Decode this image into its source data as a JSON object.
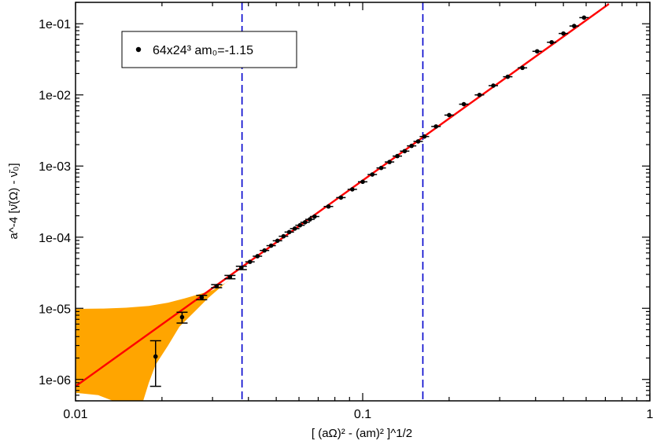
{
  "chart_data": {
    "type": "scatter",
    "xscale": "log",
    "yscale": "log",
    "xlim": [
      0.01,
      1
    ],
    "ylim": [
      5e-07,
      0.2
    ],
    "grid": false,
    "x_ticks": [
      {
        "value": 0.01,
        "label": "0.01"
      },
      {
        "value": 0.1,
        "label": "0.1"
      },
      {
        "value": 1,
        "label": "1"
      }
    ],
    "y_ticks": [
      {
        "value": 1e-06,
        "label": "1e-06"
      },
      {
        "value": 1e-05,
        "label": "1e-05"
      },
      {
        "value": 0.0001,
        "label": "1e-04"
      },
      {
        "value": 0.001,
        "label": "1e-03"
      },
      {
        "value": 0.01,
        "label": "1e-02"
      },
      {
        "value": 0.1,
        "label": "1e-01"
      }
    ],
    "xlabel": "[ (aΩ)² - (am)² ]^1/2",
    "ylabel": "a^-4 [ν̄(Ω) - ν̄₀]",
    "legend": {
      "position": "top-left",
      "entries": [
        "64x24³ am₀=-1.15"
      ]
    },
    "series": [
      {
        "name": "64x24³ am₀=-1.15",
        "marker": "circle",
        "color": "#000000",
        "points": [
          {
            "x": 0.019,
            "y": 2.1e-06,
            "ylo": 8e-07,
            "yhi": 3.5e-06
          },
          {
            "x": 0.0235,
            "y": 7.5e-06,
            "ylo": 6.2e-06,
            "yhi": 8.8e-06
          },
          {
            "x": 0.0275,
            "y": 1.42e-05,
            "ylo": 1.32e-05,
            "yhi": 1.52e-05
          },
          {
            "x": 0.031,
            "y": 2.05e-05,
            "ylo": 1.95e-05,
            "yhi": 2.15e-05
          },
          {
            "x": 0.0345,
            "y": 2.75e-05,
            "ylo": 2.6e-05,
            "yhi": 2.9e-05
          },
          {
            "x": 0.0378,
            "y": 3.7e-05,
            "ylo": 3.5e-05,
            "yhi": 3.9e-05
          },
          {
            "x": 0.0405,
            "y": 4.5e-05
          },
          {
            "x": 0.043,
            "y": 5.4e-05
          },
          {
            "x": 0.0455,
            "y": 6.5e-05
          },
          {
            "x": 0.048,
            "y": 7.6e-05
          },
          {
            "x": 0.0505,
            "y": 8.9e-05
          },
          {
            "x": 0.053,
            "y": 0.000103
          },
          {
            "x": 0.0555,
            "y": 0.000118
          },
          {
            "x": 0.058,
            "y": 0.000132
          },
          {
            "x": 0.0605,
            "y": 0.000147
          },
          {
            "x": 0.063,
            "y": 0.000162
          },
          {
            "x": 0.0655,
            "y": 0.000178
          },
          {
            "x": 0.068,
            "y": 0.000195
          },
          {
            "x": 0.076,
            "y": 0.00027
          },
          {
            "x": 0.084,
            "y": 0.00036
          },
          {
            "x": 0.092,
            "y": 0.00047
          },
          {
            "x": 0.1,
            "y": 0.0006
          },
          {
            "x": 0.108,
            "y": 0.00076
          },
          {
            "x": 0.116,
            "y": 0.00094
          },
          {
            "x": 0.124,
            "y": 0.00114
          },
          {
            "x": 0.132,
            "y": 0.00138
          },
          {
            "x": 0.14,
            "y": 0.00162
          },
          {
            "x": 0.148,
            "y": 0.00192
          },
          {
            "x": 0.156,
            "y": 0.00222
          },
          {
            "x": 0.164,
            "y": 0.0026
          },
          {
            "x": 0.18,
            "y": 0.0036
          },
          {
            "x": 0.2,
            "y": 0.0052
          },
          {
            "x": 0.225,
            "y": 0.0074
          },
          {
            "x": 0.255,
            "y": 0.01
          },
          {
            "x": 0.285,
            "y": 0.0135
          },
          {
            "x": 0.32,
            "y": 0.018
          },
          {
            "x": 0.36,
            "y": 0.024
          },
          {
            "x": 0.405,
            "y": 0.041
          },
          {
            "x": 0.455,
            "y": 0.055
          },
          {
            "x": 0.5,
            "y": 0.073
          },
          {
            "x": 0.545,
            "y": 0.093
          },
          {
            "x": 0.59,
            "y": 0.122
          }
        ]
      }
    ],
    "fit_line": {
      "color": "#ff0000",
      "points": [
        [
          0.01,
          8e-07
        ],
        [
          0.72,
          0.19
        ]
      ]
    },
    "error_band": {
      "color": "#ffa500",
      "upper": [
        [
          0.01,
          9.8e-06
        ],
        [
          0.0125,
          9.9e-06
        ],
        [
          0.015,
          1.02e-05
        ],
        [
          0.018,
          1.08e-05
        ],
        [
          0.021,
          1.2e-05
        ],
        [
          0.024,
          1.38e-05
        ],
        [
          0.027,
          1.58e-05
        ],
        [
          0.03,
          1.8e-05
        ],
        [
          0.0335,
          2.3e-05
        ],
        [
          0.0368,
          3.2e-05
        ]
      ],
      "lower": [
        [
          0.0368,
          3.2e-05
        ],
        [
          0.033,
          2.2e-05
        ],
        [
          0.029,
          1.4e-05
        ],
        [
          0.026,
          9e-06
        ],
        [
          0.023,
          5.5e-06
        ],
        [
          0.021,
          3e-06
        ],
        [
          0.019,
          1.6e-06
        ],
        [
          0.018,
          9e-07
        ],
        [
          0.0172,
          5e-07
        ],
        [
          0.0135,
          5e-07
        ],
        [
          0.012,
          6e-07
        ],
        [
          0.01,
          6.5e-07
        ]
      ]
    },
    "vlines": [
      {
        "x": 0.038,
        "color": "#0000cc",
        "style": "dashed"
      },
      {
        "x": 0.162,
        "color": "#0000cc",
        "style": "dashed"
      }
    ]
  }
}
